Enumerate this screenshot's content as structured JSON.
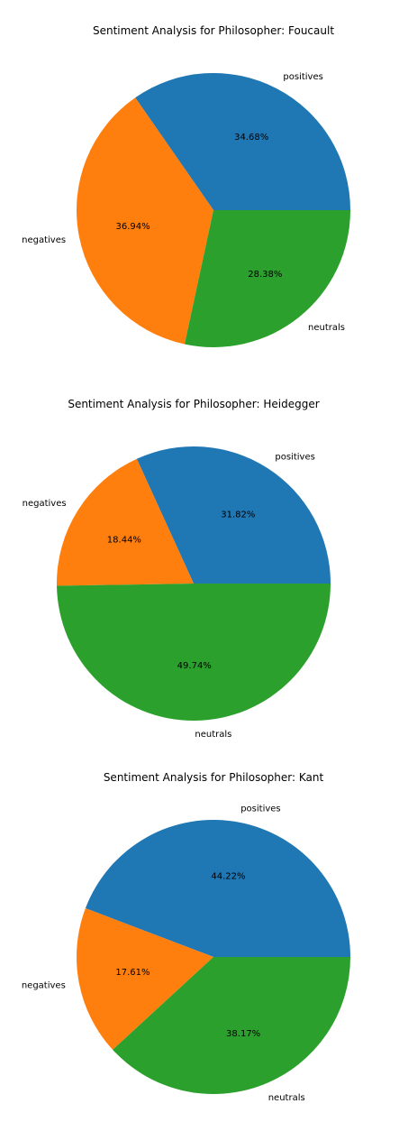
{
  "chart_data": [
    {
      "type": "pie",
      "title": "Sentiment Analysis for  Philosopher: Foucault",
      "categories": [
        "positives",
        "negatives",
        "neutrals"
      ],
      "values": [
        34.68,
        36.94,
        28.38
      ],
      "labels_pct": [
        "34.68%",
        "36.94%",
        "28.38%"
      ],
      "colors": [
        "#1f77b4",
        "#ff7f0e",
        "#2ca02c"
      ],
      "startangle_deg": 0,
      "direction": "counterclockwise",
      "legend": "none",
      "grid": false
    },
    {
      "type": "pie",
      "title": "Sentiment Analysis for  Philosopher: Heidegger",
      "categories": [
        "positives",
        "negatives",
        "neutrals"
      ],
      "values": [
        31.82,
        18.44,
        49.74
      ],
      "labels_pct": [
        "31.82%",
        "18.44%",
        "49.74%"
      ],
      "colors": [
        "#1f77b4",
        "#ff7f0e",
        "#2ca02c"
      ],
      "startangle_deg": 0,
      "direction": "counterclockwise",
      "legend": "none",
      "grid": false
    },
    {
      "type": "pie",
      "title": "Sentiment Analysis for  Philosopher: Kant",
      "categories": [
        "positives",
        "negatives",
        "neutrals"
      ],
      "values": [
        44.22,
        17.61,
        38.17
      ],
      "labels_pct": [
        "44.22%",
        "17.61%",
        "38.17%"
      ],
      "colors": [
        "#1f77b4",
        "#ff7f0e",
        "#2ca02c"
      ],
      "startangle_deg": 0,
      "direction": "counterclockwise",
      "legend": "none",
      "grid": false
    }
  ]
}
